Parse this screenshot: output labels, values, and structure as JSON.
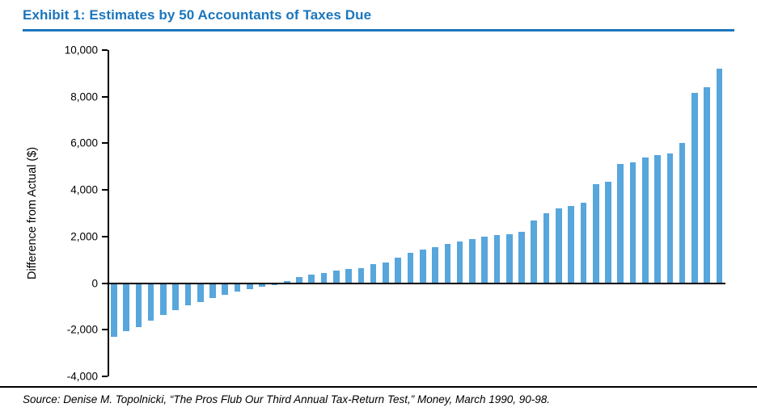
{
  "header": {
    "title": "Exhibit 1: Estimates by 50 Accountants of Taxes Due"
  },
  "footer": {
    "source": "Source: Denise M. Topolnicki, “The Pros Flub Our Third Annual Tax-Return Test,” Money, March 1990, 90-98."
  },
  "colors": {
    "accent_blue": "#1B75BC",
    "bar_blue": "#57A6DC",
    "axis_black": "#000000"
  },
  "chart_data": {
    "type": "bar",
    "title": "Exhibit 1: Estimates by 50 Accountants of Taxes Due",
    "xlabel": "",
    "ylabel": "Difference from Actual ($)",
    "ylim": [
      -4000,
      10000
    ],
    "ytick_step": 2000,
    "grid": false,
    "legend": "none",
    "n_bars": 50,
    "bar_color": "#57A6DC",
    "values": [
      -2300,
      -2050,
      -1900,
      -1600,
      -1350,
      -1150,
      -950,
      -800,
      -650,
      -500,
      -350,
      -250,
      -150,
      -80,
      100,
      250,
      350,
      450,
      550,
      600,
      650,
      800,
      900,
      1100,
      1300,
      1450,
      1550,
      1700,
      1800,
      1900,
      2000,
      2050,
      2100,
      2200,
      2700,
      3000,
      3200,
      3300,
      3450,
      4250,
      4350,
      5100,
      5200,
      5400,
      5500,
      5550,
      6000,
      8150,
      8400,
      9200
    ]
  }
}
